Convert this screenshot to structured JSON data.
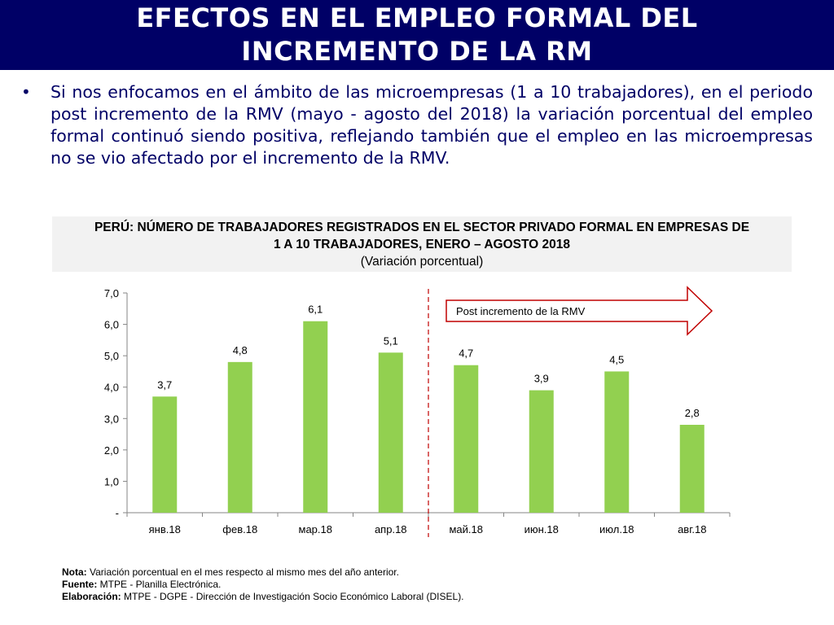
{
  "slide": {
    "title_line1": "EFECTOS EN EL EMPLEO FORMAL DEL",
    "title_line2": "INCREMENTO DE LA RM",
    "bullet": "Si nos enfocamos en el ámbito de las microempresas (1 a 10 trabajadores), en el periodo post incremento de la RMV (mayo - agosto del 2018) la variación porcentual del empleo formal continuó siendo positiva, reflejando también que el empleo en las microempresas no se vio afectado por el incremento de la RMV."
  },
  "chart_header": {
    "title_line1": "PERÚ: NÚMERO DE TRABAJADORES REGISTRADOS EN EL SECTOR PRIVADO FORMAL EN EMPRESAS DE",
    "title_line2": "1 A 10 TRABAJADORES, ENERO – AGOSTO 2018",
    "subtitle": "(Variación porcentual)"
  },
  "chart_data": {
    "type": "bar",
    "categories": [
      "янв.18",
      "фев.18",
      "мар.18",
      "апр.18",
      "май.18",
      "июн.18",
      "июл.18",
      "авг.18"
    ],
    "values": [
      3.7,
      4.8,
      6.1,
      5.1,
      4.7,
      3.9,
      4.5,
      2.8
    ],
    "data_labels": [
      "3,7",
      "4,8",
      "6,1",
      "5,1",
      "4,7",
      "3,9",
      "4,5",
      "2,8"
    ],
    "ylim": [
      0,
      7
    ],
    "yticks": [
      0,
      1,
      2,
      3,
      4,
      5,
      6,
      7
    ],
    "ytick_labels": [
      "-",
      "1,0",
      "2,0",
      "3,0",
      "4,0",
      "5,0",
      "6,0",
      "7,0"
    ],
    "bar_color": "#92d050",
    "annotation": {
      "text": "Post incremento de la RMV",
      "divider_between": [
        "апр.18",
        "май.18"
      ],
      "divider_color": "#c00000",
      "arrow_color": "#c00000"
    },
    "grid": false
  },
  "notes": {
    "nota_label": "Nota:",
    "nota_text": " Variación porcentual en el mes respecto al mismo mes del año anterior.",
    "fuente_label": "Fuente:",
    "fuente_text": " MTPE - Planilla Electrónica.",
    "elaboracion_label": "Elaboración:",
    "elaboracion_text": " MTPE - DGPE - Dirección de Investigación Socio Económico Laboral (DISEL)."
  }
}
